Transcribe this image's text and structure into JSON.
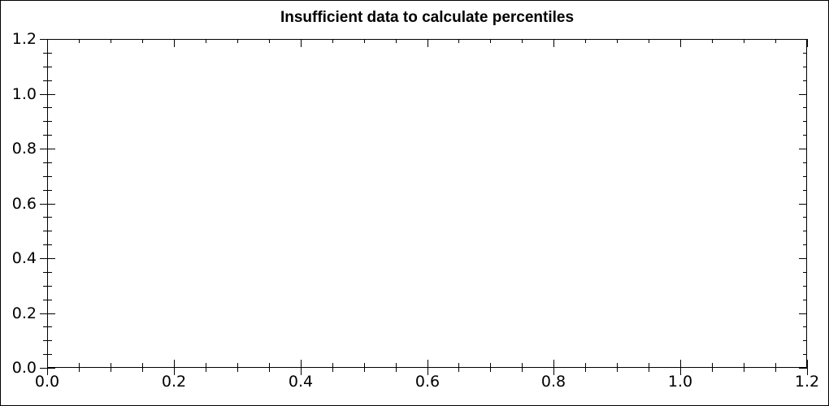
{
  "window": {
    "background_color": "#ffffff",
    "border_color": "#000000"
  },
  "chart_data": {
    "type": "scatter",
    "title": "Insufficient data to calculate percentiles",
    "series": [],
    "xlabel": "",
    "ylabel": "",
    "xlim": [
      0.0,
      1.2
    ],
    "ylim": [
      0.0,
      1.2
    ],
    "x_major_step": 0.2,
    "y_major_step": 0.2,
    "x_minor_step": 0.05,
    "y_minor_step": 0.05,
    "x_tick_labels": [
      "0.0",
      "0.2",
      "0.4",
      "0.6",
      "0.8",
      "1.0",
      "1.2"
    ],
    "y_tick_labels": [
      "0.0",
      "0.2",
      "0.4",
      "0.6",
      "0.8",
      "1.0",
      "1.2"
    ],
    "grid": false,
    "boxed_axes": true,
    "legend": null,
    "foreground_color": "#000000",
    "plot_background_color": "#ffffff"
  }
}
